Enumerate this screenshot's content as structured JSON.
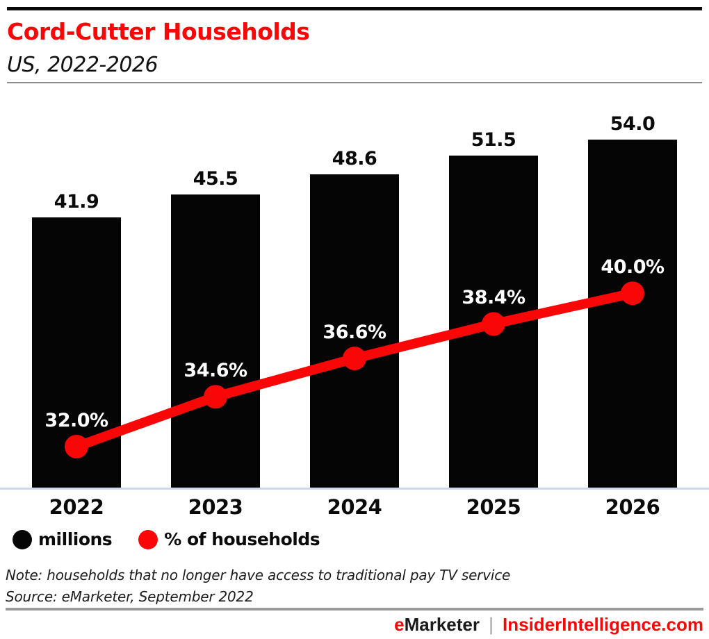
{
  "header": {
    "title": "Cord-Cutter Households",
    "subtitle": "US, 2022-2026"
  },
  "chart_data": {
    "type": "bar",
    "subtype": "bar-plus-line-combo",
    "title": "Cord-Cutter Households",
    "subtitle": "US, 2022-2026",
    "categories": [
      "2022",
      "2023",
      "2024",
      "2025",
      "2026"
    ],
    "series": [
      {
        "name": "millions",
        "type": "bar",
        "values": [
          41.9,
          45.5,
          48.6,
          51.5,
          54.0
        ],
        "labels": [
          "41.9",
          "45.5",
          "48.6",
          "51.5",
          "54.0"
        ],
        "color": "#000000"
      },
      {
        "name": "% of households",
        "type": "line",
        "values": [
          32.0,
          34.6,
          36.6,
          38.4,
          40.0
        ],
        "labels": [
          "32.0%",
          "34.6%",
          "36.6%",
          "38.4%",
          "40.0%"
        ],
        "color": "#f90606"
      }
    ],
    "xlabel": "",
    "ylabel": "",
    "ylim_bars": [
      0,
      56
    ],
    "grid": false,
    "legend_position": "bottom-left",
    "bar_label_color": "#0a0a0a",
    "line_label_color": "#ffffff"
  },
  "legend": {
    "items": [
      {
        "label": "millions",
        "color": "#050505"
      },
      {
        "label": "% of households",
        "color": "#f90606"
      }
    ]
  },
  "note": "Note: households that no longer have access to traditional pay TV service",
  "source": "Source: eMarketer, September 2022",
  "footer": {
    "brand_e": "e",
    "brand_rest": "Marketer",
    "separator": "|",
    "site": "InsiderIntelligence.com"
  },
  "colors": {
    "accent_red": "#f90606",
    "bar_black": "#050505",
    "baseline": "#ccd6ee",
    "rule_gray": "#8c8c8c",
    "footer_rule_gray": "#9b9b9b"
  }
}
